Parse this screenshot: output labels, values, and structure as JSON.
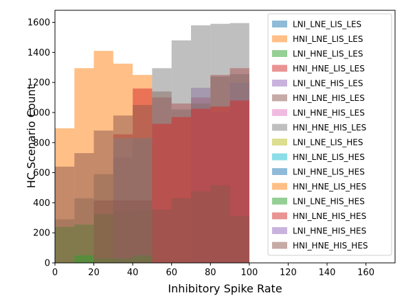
{
  "chart_data": {
    "type": "bar",
    "subtype": "overlapping-histogram",
    "xlabel": "Inhibitory Spike Rate",
    "ylabel": "HC Scenario Count",
    "xlim": [
      0,
      175
    ],
    "ylim": [
      0,
      1680
    ],
    "xticks": [
      0,
      20,
      40,
      60,
      80,
      100,
      120,
      140,
      160
    ],
    "yticks": [
      0,
      200,
      400,
      600,
      800,
      1000,
      1200,
      1400,
      1600
    ],
    "grid": false,
    "legend_position": "top-right",
    "bar_alpha": 0.5,
    "bin_width": 10,
    "series": [
      {
        "name": "LNI_LNE_LIS_LES",
        "color": "#1f77b4",
        "x": [
          5,
          15,
          25,
          35,
          45
        ],
        "values": [
          290,
          430,
          590,
          700,
          830
        ]
      },
      {
        "name": "HNI_LNE_LIS_LES",
        "color": "#ff7f0e",
        "x": [
          5,
          15,
          25,
          35,
          45
        ],
        "values": [
          895,
          1295,
          1410,
          1325,
          1250
        ]
      },
      {
        "name": "LNI_HNE_LIS_LES",
        "color": "#2ca02c",
        "x": [
          5,
          15,
          25,
          35,
          45
        ],
        "values": [
          240,
          255,
          325,
          345,
          350
        ]
      },
      {
        "name": "HNI_HNE_LIS_LES",
        "color": "#d62728",
        "x": [
          5,
          15,
          25,
          35,
          45,
          55,
          65,
          75,
          85,
          95
        ],
        "values": [
          0,
          0,
          0,
          855,
          1160,
          1100,
          1060,
          1100,
          1250,
          1295
        ]
      },
      {
        "name": "LNI_LNE_HIS_LES",
        "color": "#9467bd",
        "x": [
          55,
          65,
          75,
          85,
          95
        ],
        "values": [
          0,
          0,
          1165,
          1000,
          1200
        ]
      },
      {
        "name": "HNI_LNE_HIS_LES",
        "color": "#8c564b",
        "x": [
          5,
          15,
          25,
          35,
          45,
          55,
          65,
          75,
          85,
          95
        ],
        "values": [
          640,
          730,
          880,
          980,
          1050,
          1140,
          1020,
          1060,
          1240,
          1255
        ]
      },
      {
        "name": "LNI_HNE_HIS_LES",
        "color": "#e377c2",
        "x": [],
        "values": []
      },
      {
        "name": "HNI_HNE_HIS_LES",
        "color": "#7f7f7f",
        "x": [
          5,
          15,
          25,
          35,
          45,
          55,
          65,
          75,
          85,
          95
        ],
        "values": [
          0,
          0,
          0,
          830,
          830,
          1295,
          1480,
          1580,
          1590,
          1595
        ]
      },
      {
        "name": "LNI_LNE_LIS_HES",
        "color": "#bcbd22",
        "x": [],
        "values": []
      },
      {
        "name": "HNI_LNE_LIS_HES",
        "color": "#17becf",
        "x": [],
        "values": []
      },
      {
        "name": "LNI_HNE_LIS_HES",
        "color": "#1f77b4",
        "x": [],
        "values": []
      },
      {
        "name": "HNI_HNE_LIS_HES",
        "color": "#ff7f0e",
        "x": [],
        "values": []
      },
      {
        "name": "LNI_LNE_HIS_HES",
        "color": "#2ca02c",
        "x": [
          5,
          15,
          25,
          35,
          45
        ],
        "values": [
          0,
          50,
          30,
          30,
          50
        ]
      },
      {
        "name": "HNI_LNE_HIS_HES",
        "color": "#d62728",
        "x": [
          55,
          65,
          75,
          85,
          95
        ],
        "values": [
          925,
          970,
          1025,
          1040,
          1080
        ]
      },
      {
        "name": "LNI_HNE_HIS_HES",
        "color": "#9467bd",
        "x": [],
        "values": []
      },
      {
        "name": "HNI_HNE_HIS_HES",
        "color": "#8c564b",
        "x": [
          5,
          15,
          25,
          35,
          45,
          55,
          65,
          75,
          85,
          95
        ],
        "values": [
          0,
          0,
          415,
          415,
          415,
          355,
          430,
          475,
          515,
          310
        ]
      }
    ]
  }
}
